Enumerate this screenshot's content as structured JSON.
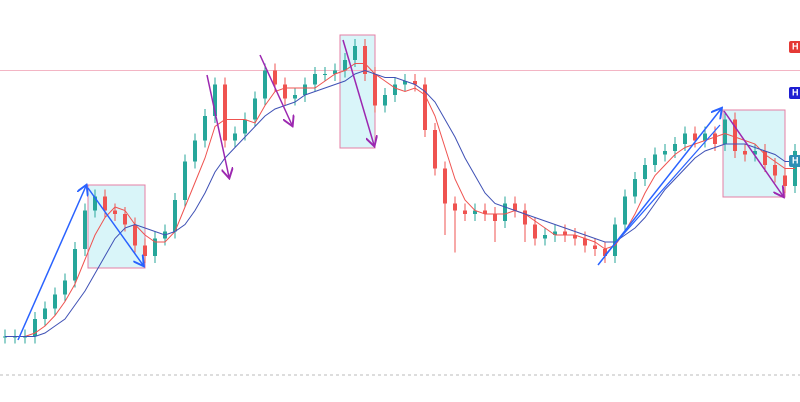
{
  "chart_data": {
    "type": "candlestick",
    "open": [
      11,
      11,
      11,
      11,
      16,
      19,
      23,
      27,
      36,
      47,
      51,
      47,
      46,
      43,
      37,
      34,
      39,
      41,
      50,
      61,
      67,
      74,
      83,
      67,
      69,
      73,
      79,
      87,
      83,
      79,
      80,
      83,
      86,
      86,
      87,
      90,
      94,
      86,
      77,
      80,
      83,
      84,
      83,
      70,
      59,
      49,
      47,
      46,
      47,
      46,
      44,
      49,
      47,
      43,
      39,
      40,
      41,
      40,
      39,
      37,
      36,
      34,
      43,
      51,
      56,
      60,
      63,
      64,
      66,
      69,
      67,
      69,
      66,
      73,
      64,
      63,
      64,
      60,
      57,
      54
    ],
    "high": [
      13,
      13,
      13,
      18,
      21,
      25,
      29,
      38,
      49,
      53,
      53,
      49,
      48,
      45,
      39,
      41,
      43,
      52,
      63,
      69,
      76,
      85,
      85,
      71,
      75,
      81,
      89,
      89,
      85,
      82,
      85,
      88,
      88,
      89,
      92,
      96,
      96,
      88,
      82,
      85,
      86,
      86,
      85,
      72,
      61,
      51,
      49,
      49,
      49,
      48,
      51,
      51,
      49,
      45,
      42,
      43,
      43,
      42,
      41,
      39,
      38,
      45,
      53,
      58,
      62,
      65,
      66,
      68,
      71,
      71,
      71,
      71,
      75,
      75,
      66,
      66,
      66,
      62,
      59,
      66
    ],
    "low": [
      9,
      9,
      9,
      9,
      14,
      17,
      21,
      25,
      34,
      45,
      45,
      44,
      41,
      35,
      32,
      32,
      37,
      39,
      48,
      59,
      65,
      72,
      65,
      65,
      67,
      71,
      77,
      81,
      77,
      77,
      78,
      81,
      84,
      84,
      85,
      88,
      84,
      75,
      75,
      78,
      81,
      81,
      68,
      57,
      40,
      35,
      44,
      44,
      44,
      38,
      42,
      45,
      38,
      37,
      37,
      38,
      38,
      37,
      35,
      34,
      32,
      32,
      41,
      49,
      54,
      58,
      61,
      62,
      64,
      65,
      65,
      64,
      64,
      62,
      61,
      61,
      58,
      55,
      52,
      52
    ],
    "close": [
      11,
      11,
      11,
      16,
      19,
      23,
      27,
      36,
      47,
      51,
      47,
      46,
      43,
      37,
      34,
      39,
      41,
      50,
      61,
      67,
      74,
      83,
      67,
      69,
      73,
      79,
      87,
      83,
      79,
      80,
      83,
      86,
      86,
      87,
      90,
      94,
      86,
      77,
      80,
      83,
      84,
      83,
      70,
      59,
      49,
      47,
      46,
      47,
      46,
      44,
      49,
      47,
      43,
      39,
      40,
      41,
      40,
      39,
      37,
      36,
      34,
      43,
      51,
      56,
      60,
      63,
      64,
      66,
      69,
      67,
      69,
      66,
      73,
      64,
      63,
      64,
      60,
      57,
      54,
      64
    ],
    "up_color": "#26a69a",
    "down_color": "#ef5350",
    "series": [
      {
        "color": "#ef5350",
        "values": [
          11,
          11,
          11,
          12,
          14,
          17,
          21,
          26,
          33,
          40,
          45,
          48,
          47,
          43,
          40,
          38,
          38,
          41,
          48,
          55,
          62,
          71,
          73,
          73,
          73,
          72,
          77,
          81,
          82,
          82,
          82,
          82,
          84,
          86,
          87,
          89,
          89,
          86,
          84,
          82,
          81,
          82,
          80,
          74,
          65,
          56,
          50,
          47,
          46,
          46,
          46,
          47,
          46,
          44,
          42,
          40,
          40,
          40,
          39,
          38,
          36,
          37,
          41,
          46,
          52,
          57,
          60,
          63,
          65,
          66,
          67,
          68,
          69,
          68,
          67,
          66,
          63,
          61,
          59,
          59
        ]
      },
      {
        "color": "#3f51b5",
        "values": [
          11,
          11,
          11,
          11,
          12,
          14,
          16,
          20,
          24,
          29,
          34,
          39,
          42,
          43,
          42,
          41,
          40,
          41,
          43,
          47,
          52,
          58,
          62,
          65,
          68,
          71,
          74,
          76,
          77,
          78,
          80,
          81,
          82,
          83,
          84,
          86,
          87,
          86,
          85,
          85,
          84,
          83,
          81,
          78,
          73,
          68,
          62,
          57,
          52,
          49,
          48,
          47,
          46,
          45,
          44,
          43,
          42,
          41,
          40,
          39,
          38,
          38,
          40,
          42,
          45,
          49,
          53,
          56,
          59,
          62,
          64,
          65,
          66,
          66,
          66,
          65,
          64,
          63,
          61,
          61
        ]
      }
    ],
    "price_line": 87,
    "ylim": [
      0,
      100
    ],
    "price_labels": [
      {
        "text": "H",
        "color": "#e53935"
      },
      {
        "text": "H",
        "color": "#1e1ed2"
      },
      {
        "text": "H",
        "color": "#2f8fb5"
      }
    ]
  }
}
